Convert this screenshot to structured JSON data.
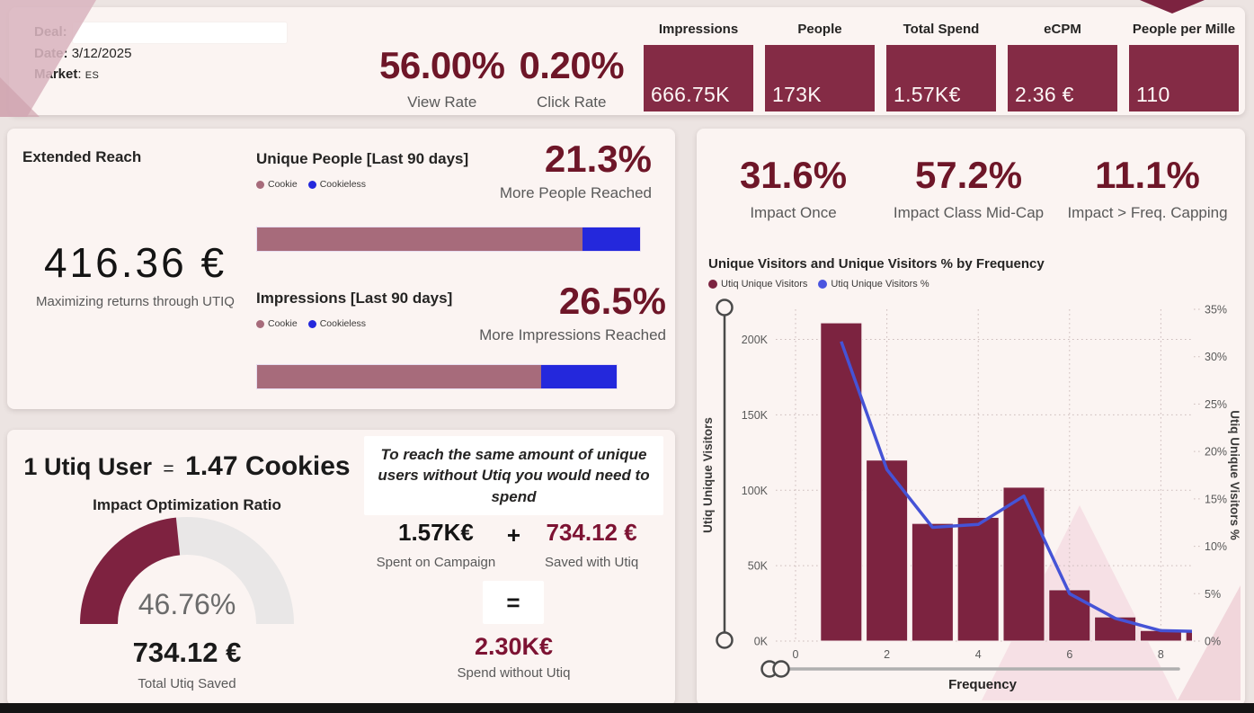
{
  "header": {
    "deal": {
      "label": "Deal:",
      "value": ""
    },
    "date": {
      "label": "Date:",
      "value": "3/12/2025"
    },
    "market": {
      "label": "Market",
      "separator": ": ",
      "value": "ES"
    },
    "view_rate": {
      "value": "56.00%",
      "label": "View Rate"
    },
    "click_rate": {
      "value": "0.20%",
      "label": "Click Rate"
    },
    "kpis": [
      {
        "label": "Impressions",
        "value": "666.75K"
      },
      {
        "label": "People",
        "value": "173K"
      },
      {
        "label": "Total Spend",
        "value": "1.57K€"
      },
      {
        "label": "eCPM",
        "value": "2.36 €"
      },
      {
        "label": "People per Mille",
        "value": "110"
      }
    ]
  },
  "extended_reach": {
    "title": "Extended Reach",
    "amount": "416.36 €",
    "subtitle": "Maximizing returns through UTIQ"
  },
  "ratio_card": {
    "headline_prefix": "1 Utiq User",
    "headline_eq": "=",
    "headline_value": "1.47 Cookies",
    "saved_value": "734.12 €",
    "saved_label": "Total Utiq Saved"
  },
  "spend_card": {
    "message": "To reach the same amount of unique users without Utiq you would need to spend",
    "spent": {
      "value": "1.57K€",
      "label": "Spent on Campaign"
    },
    "plus": "+",
    "saved": {
      "value": "734.12 €",
      "label": "Saved with Utiq"
    },
    "equals": "=",
    "total": {
      "value": "2.30K€",
      "label": "Spend without Utiq"
    }
  },
  "impact_stats": [
    {
      "value": "31.6%",
      "label": "Impact Once"
    },
    {
      "value": "57.2%",
      "label": "Impact Class Mid-Cap"
    },
    {
      "value": "11.1%",
      "label": "Impact > Freq. Capping"
    }
  ],
  "chart_data": [
    {
      "id": "frequency-combo",
      "type": "bar",
      "title": "Unique Visitors and Unique Visitors % by Frequency",
      "xlabel": "Frequency",
      "ylabel_left": "Utiq Unique Visitors",
      "ylabel_right": "Utiq Unique Visitors %",
      "legend": [
        "Utiq Unique Visitors",
        "Utiq Unique Visitors %"
      ],
      "legend_position": "top-left",
      "grid": "dotted",
      "x": [
        1,
        2,
        3,
        4,
        5,
        6,
        7,
        8,
        9
      ],
      "series": [
        {
          "name": "Utiq Unique Visitors",
          "type": "bar",
          "axis": "left",
          "values": [
            211000,
            120000,
            78000,
            82000,
            102000,
            34000,
            16000,
            7000,
            6000
          ]
        },
        {
          "name": "Utiq Unique Visitors %",
          "type": "line",
          "axis": "right",
          "values": [
            31.6,
            18.1,
            12.0,
            12.3,
            15.3,
            5.0,
            2.4,
            1.1,
            1.0
          ]
        }
      ],
      "left_axis": {
        "ticks": [
          0,
          50000,
          100000,
          150000,
          200000
        ],
        "tick_labels": [
          "0K",
          "50K",
          "100K",
          "150K",
          "200K"
        ],
        "max": 220000
      },
      "right_axis": {
        "ticks": [
          0,
          5,
          10,
          15,
          20,
          25,
          30,
          35
        ],
        "tick_labels": [
          "0%",
          "5%",
          "10%",
          "15%",
          "20%",
          "25%",
          "30%",
          "35%"
        ],
        "max": 35
      },
      "x_axis": {
        "ticks": [
          0,
          2,
          4,
          6,
          8
        ],
        "tick_labels": [
          "0",
          "2",
          "4",
          "6",
          "8"
        ]
      }
    },
    {
      "id": "impact-optimization-gauge",
      "type": "gauge",
      "title": "Impact Optimization Ratio",
      "value_pct": 46.76,
      "display": "46.76%",
      "range": [
        0,
        100
      ]
    },
    {
      "id": "unique-people-split",
      "type": "stacked-bar",
      "title": "Unique People [Last 90 days]",
      "categories": [
        "Cookie",
        "Cookieless"
      ],
      "values_pct": [
        85.0,
        15.0
      ],
      "callout": "21.3%",
      "callout_label": "More People Reached"
    },
    {
      "id": "impressions-split",
      "type": "stacked-bar",
      "title": "Impressions [Last 90 days]",
      "categories": [
        "Cookie",
        "Cookieless"
      ],
      "values_pct": [
        79.0,
        21.0
      ],
      "callout": "26.5%",
      "callout_label": "More Impressions Reached"
    }
  ],
  "colors": {
    "maroon_tile": "#842B45",
    "maroon_text": "#6E1628",
    "wine_text": "#7D1333",
    "bar_maroon": "#7C2340",
    "cookie": "#A76B7B",
    "cookieless": "#2428DC",
    "line_blue": "#4553D6",
    "legend_blue": "#4A55E0",
    "gauge_fill": "#7E2240",
    "gauge_track": "#E9E7E7",
    "grid": "#CDBDBC",
    "watermark1": "#F4DAE0",
    "watermark2": "#EDC9D2",
    "corner_pink": "#D9B5BF"
  }
}
